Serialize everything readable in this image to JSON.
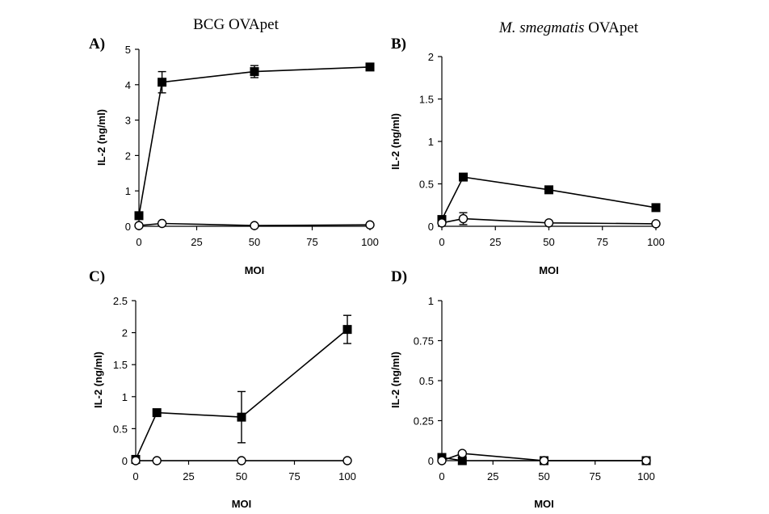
{
  "column_titles": {
    "left": "BCG OVApet",
    "right_italic": "M. smegmatis",
    "right_rest": " OVApet"
  },
  "chart_data": [
    {
      "panel": "A)",
      "type": "line",
      "xlabel": "MOI",
      "ylabel": "IL-2 (ng/ml)",
      "xlim": [
        0,
        100
      ],
      "ylim": [
        0,
        5
      ],
      "xticks": [
        0,
        25,
        50,
        75,
        100
      ],
      "yticks": [
        0,
        1,
        2,
        3,
        4,
        5
      ],
      "xtick_labels": [
        "0",
        "25",
        "50",
        "75",
        "100"
      ],
      "ytick_labels": [
        "0",
        "1",
        "2",
        "3",
        "4",
        "5"
      ],
      "grid": false,
      "series": [
        {
          "marker": "filled-square",
          "x": [
            0,
            10,
            50,
            100
          ],
          "y": [
            0.3,
            4.07,
            4.37,
            4.5
          ],
          "err": [
            0,
            0.3,
            0.17,
            0.06
          ]
        },
        {
          "marker": "open-circle",
          "x": [
            0,
            10,
            50,
            100
          ],
          "y": [
            0.02,
            0.08,
            0.02,
            0.04
          ],
          "err": [
            0,
            0,
            0,
            0
          ]
        }
      ]
    },
    {
      "panel": "B)",
      "type": "line",
      "xlabel": "MOI",
      "ylabel": "IL-2 (ng/ml)",
      "xlim": [
        0,
        100
      ],
      "ylim": [
        0,
        2
      ],
      "xticks": [
        0,
        25,
        50,
        75,
        100
      ],
      "yticks": [
        0,
        0.5,
        1,
        1.5,
        2
      ],
      "xtick_labels": [
        "0",
        "25",
        "50",
        "75",
        "100"
      ],
      "ytick_labels": [
        "0",
        "0.5",
        "1",
        "1.5",
        "2"
      ],
      "grid": false,
      "series": [
        {
          "marker": "filled-square",
          "x": [
            0,
            10,
            50,
            100
          ],
          "y": [
            0.08,
            0.58,
            0.43,
            0.22
          ],
          "err": [
            0,
            0,
            0.02,
            0.02
          ]
        },
        {
          "marker": "open-circle",
          "x": [
            0,
            10,
            50,
            100
          ],
          "y": [
            0.04,
            0.09,
            0.04,
            0.03
          ],
          "err": [
            0,
            0.07,
            0,
            0
          ]
        }
      ]
    },
    {
      "panel": "C)",
      "type": "line",
      "xlabel": "MOI",
      "ylabel": "IL-2 (ng/ml)",
      "xlim": [
        0,
        100
      ],
      "ylim": [
        0,
        2.5
      ],
      "xticks": [
        0,
        25,
        50,
        75,
        100
      ],
      "yticks": [
        0,
        0.5,
        1,
        1.5,
        2,
        2.5
      ],
      "xtick_labels": [
        "0",
        "25",
        "50",
        "75",
        "100"
      ],
      "ytick_labels": [
        "0",
        "0.5",
        "1",
        "1.5",
        "2",
        "2.5"
      ],
      "grid": false,
      "series": [
        {
          "marker": "filled-square",
          "x": [
            0,
            10,
            50,
            100
          ],
          "y": [
            0.02,
            0.75,
            0.68,
            2.05
          ],
          "err": [
            0,
            0.05,
            0.4,
            0.22
          ]
        },
        {
          "marker": "open-circle",
          "x": [
            0,
            10,
            50,
            100
          ],
          "y": [
            0.0,
            0.0,
            0.0,
            0.0
          ],
          "err": [
            0,
            0,
            0,
            0
          ]
        }
      ]
    },
    {
      "panel": "D)",
      "type": "line",
      "xlabel": "MOI",
      "ylabel": "IL-2 (ng/ml)",
      "xlim": [
        0,
        100
      ],
      "ylim": [
        0,
        1
      ],
      "xticks": [
        0,
        25,
        50,
        75,
        100
      ],
      "yticks": [
        0,
        0.25,
        0.5,
        0.75,
        1
      ],
      "xtick_labels": [
        "0",
        "25",
        "50",
        "75",
        "100"
      ],
      "ytick_labels": [
        "0",
        "0.25",
        "0.5",
        "0.75",
        "1"
      ],
      "grid": false,
      "series": [
        {
          "marker": "filled-square",
          "x": [
            0,
            10,
            50,
            100
          ],
          "y": [
            0.02,
            0.0,
            0.0,
            0.0
          ],
          "err": [
            0,
            0,
            0,
            0
          ]
        },
        {
          "marker": "open-circle",
          "x": [
            0,
            10,
            50,
            100
          ],
          "y": [
            0.0,
            0.045,
            0.0,
            0.0
          ],
          "err": [
            0,
            0,
            0,
            0
          ]
        }
      ]
    }
  ]
}
